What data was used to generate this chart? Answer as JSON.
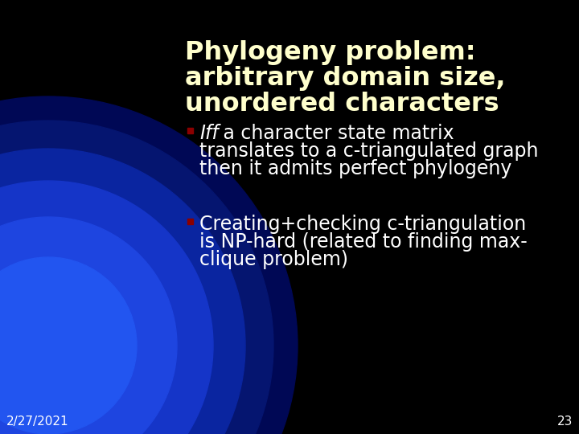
{
  "title_line1": "Phylogeny problem:",
  "title_line2": "arbitrary domain size,",
  "title_line3": "unordered characters",
  "bullet1_italic": "Iff",
  "bullet1_rest": " a character state matrix",
  "bullet1_line2": "translates to a c-triangulated graph",
  "bullet1_line3": "then it admits perfect phylogeny",
  "bullet2_line1": "Creating+checking c-triangulation",
  "bullet2_line2": "is NP-hard (related to finding max-",
  "bullet2_line3": "clique problem)",
  "date": "2/27/2021",
  "slide_number": "23",
  "bg_color": "#000000",
  "title_color": "#FFFFCC",
  "bullet_color": "#FFFFFF",
  "bullet_marker_color": "#8B0000",
  "date_color": "#FFFFFF",
  "number_color": "#FFFFFF",
  "blue_outer": "#000060",
  "blue_mid": "#0a1a80",
  "blue_bright": "#1a3adc",
  "blue_core": "#2244f0"
}
